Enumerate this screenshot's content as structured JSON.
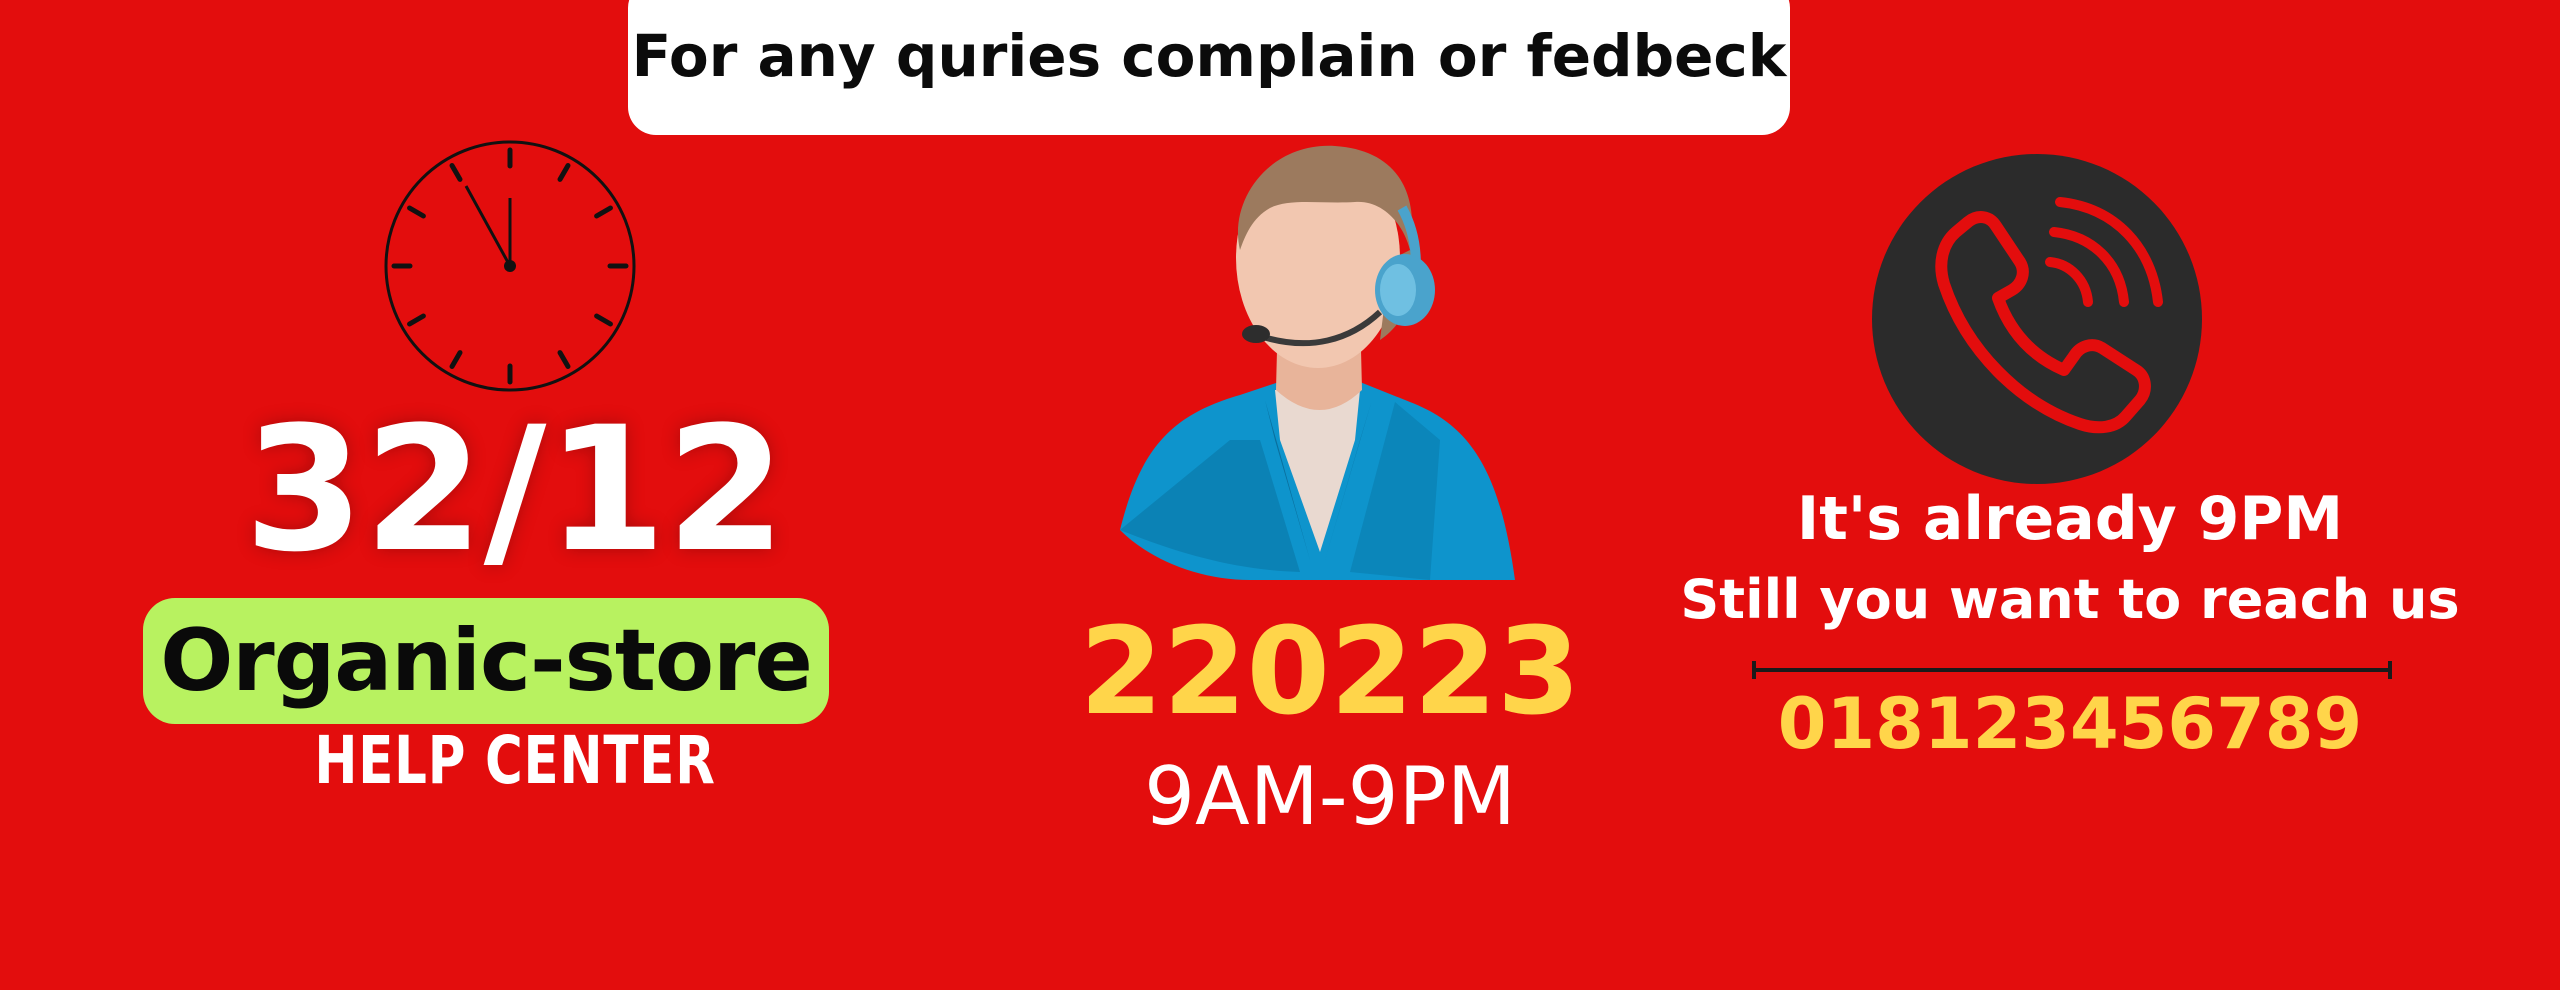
{
  "banner": {
    "text": "For any quries complain or fedbeck"
  },
  "left": {
    "date": "32/12",
    "store": "Organic-store",
    "subtitle": "HELP CENTER",
    "clock_icon": "clock-icon"
  },
  "center": {
    "code": "220223",
    "hours": "9AM-9PM",
    "agent_icon": "support-agent-icon"
  },
  "right": {
    "line1": "It's already 9PM",
    "line2": "Still you want to reach us",
    "phone": "018123456789",
    "phone_icon": "phone-call-icon"
  },
  "colors": {
    "background": "#e30d0d",
    "accent_yellow": "#ffd54a",
    "pill_green": "#b8f260",
    "dark_circle": "#2b2b2b"
  }
}
